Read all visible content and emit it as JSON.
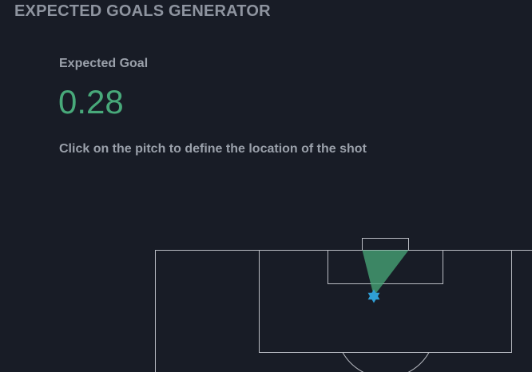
{
  "header": {
    "title": "EXPECTED GOALS GENERATOR"
  },
  "metric": {
    "label": "Expected Goal",
    "value": "0.28"
  },
  "instruction": "Click on the pitch to define the location of the shot",
  "pitch": {
    "line_color": "#b9bcc3",
    "shot_angle_color": "#48a97a",
    "shot_marker_color": "#2f9fd6",
    "shot_marker_icon": "star-icon"
  }
}
